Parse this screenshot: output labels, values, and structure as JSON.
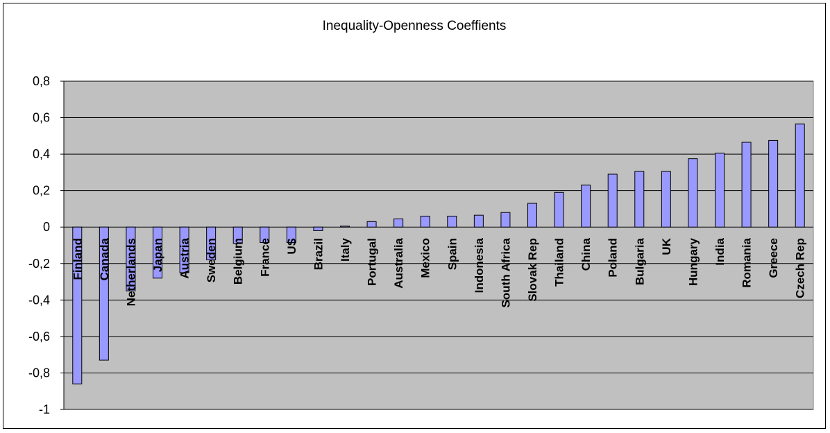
{
  "chart_data": {
    "type": "bar",
    "title": "Inequality-Openness Coeffients",
    "xlabel": "",
    "ylabel": "",
    "ylim": [
      -1,
      0.8
    ],
    "yticks": [
      0.8,
      0.6,
      0.4,
      0.2,
      0,
      -0.2,
      -0.4,
      -0.6,
      -0.8,
      -1
    ],
    "ytick_labels": [
      "0,8",
      "0,6",
      "0,4",
      "0,2",
      "0",
      "-0,2",
      "-0,4",
      "-0,6",
      "-0,8",
      "-1"
    ],
    "grid": true,
    "legend": "none",
    "colors": {
      "bar_fill": "#9999ff",
      "bar_stroke": "#000000",
      "plot_bg": "#c0c0c0",
      "grid": "#000000"
    },
    "categories": [
      "Finland",
      "Canada",
      "Netherlands",
      "Japan",
      "Austria",
      "Sweden",
      "Belgium",
      "France",
      "US",
      "Brazil",
      "Italy",
      "Portugal",
      "Australia",
      "Mexico",
      "Spain",
      "Indonesia",
      "South Africa",
      "Slovak Rep",
      "Thailand",
      "China",
      "Poland",
      "Bulgaria",
      "UK",
      "Hungary",
      "India",
      "Romania",
      "Greece",
      "Czech Rep"
    ],
    "values": [
      -0.86,
      -0.73,
      -0.35,
      -0.28,
      -0.25,
      -0.18,
      -0.09,
      -0.085,
      -0.085,
      -0.02,
      0.005,
      0.03,
      0.045,
      0.06,
      0.06,
      0.065,
      0.08,
      0.13,
      0.19,
      0.23,
      0.29,
      0.305,
      0.305,
      0.375,
      0.405,
      0.465,
      0.475,
      0.565
    ]
  }
}
